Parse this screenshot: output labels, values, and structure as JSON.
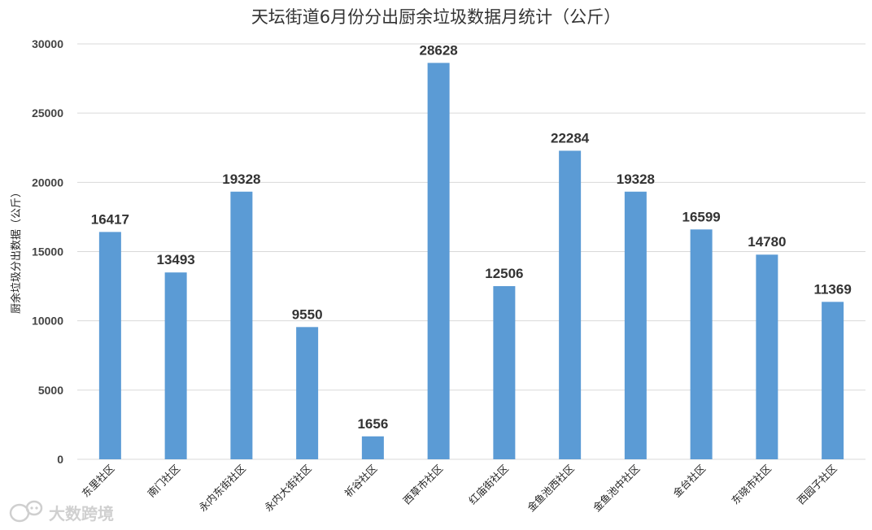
{
  "chart_data": {
    "type": "bar",
    "title": "天坛街道6月份分出厨余垃圾数据月统计（公斤）",
    "xlabel": "",
    "ylabel": "厨余垃圾分出数据（公斤）",
    "categories": [
      "东里社区",
      "南门社区",
      "永内东街社区",
      "永内大街社区",
      "祈谷社区",
      "西草市社区",
      "红庙街社区",
      "金鱼池西社区",
      "金鱼池中社区",
      "金台社区",
      "东晓市社区",
      "西园子社区"
    ],
    "values": [
      16417,
      13493,
      19328,
      9550,
      1656,
      28628,
      12506,
      22284,
      19328,
      16599,
      14780,
      11369
    ],
    "ylim": [
      0,
      30000
    ],
    "yticks": [
      0,
      5000,
      10000,
      15000,
      20000,
      25000,
      30000
    ],
    "grid": true,
    "legend": "none",
    "bar_color": "#5b9bd5"
  },
  "watermark": {
    "text": "大数跨境",
    "icon": "bubble-logo-icon"
  }
}
